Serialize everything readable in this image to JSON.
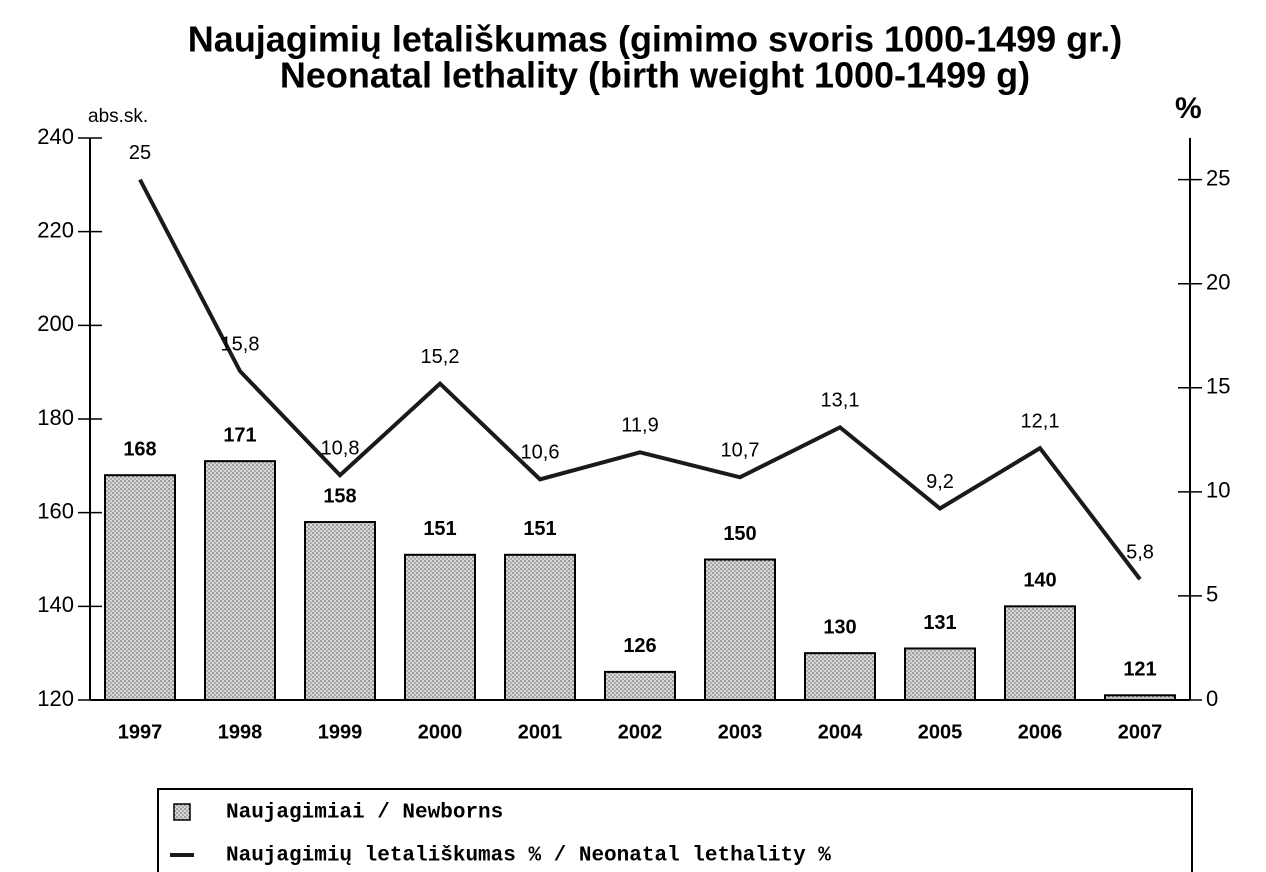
{
  "chart_data": {
    "type": "bar",
    "title": "Naujagimių letališkumas (gimimo svoris 1000-1499 gr.)",
    "subtitle": "Neonatal lethality (birth weight 1000-1499 g)",
    "ylabel": "abs.sk.",
    "y2label": "%",
    "categories": [
      "1997",
      "1998",
      "1999",
      "2000",
      "2001",
      "2002",
      "2003",
      "2004",
      "2005",
      "2006",
      "2007"
    ],
    "series": [
      {
        "name": "Naujagimiai / Newborns",
        "type": "bar",
        "color": "#d8d8d8",
        "values": [
          168,
          171,
          158,
          151,
          151,
          126,
          150,
          130,
          131,
          140,
          121
        ]
      },
      {
        "name": "Naujagimių letališkumas % / Neonatal lethality %",
        "type": "line",
        "axis": "y2",
        "color": "#1a1a1a",
        "values": [
          25,
          15.8,
          10.8,
          15.2,
          10.6,
          11.9,
          10.7,
          13.1,
          9.2,
          12.1,
          5.8
        ],
        "value_labels": [
          "25",
          "15,8",
          "10,8",
          "15,2",
          "10,6",
          "11,9",
          "10,7",
          "13,1",
          "9,2",
          "12,1",
          "5,8"
        ]
      }
    ],
    "ylim": [
      120,
      240
    ],
    "yticks": [
      120,
      140,
      160,
      180,
      200,
      220,
      240
    ],
    "y2lim": [
      0,
      27
    ],
    "y2ticks": [
      0,
      5,
      10,
      15,
      20,
      25
    ],
    "legend": "bottom"
  }
}
